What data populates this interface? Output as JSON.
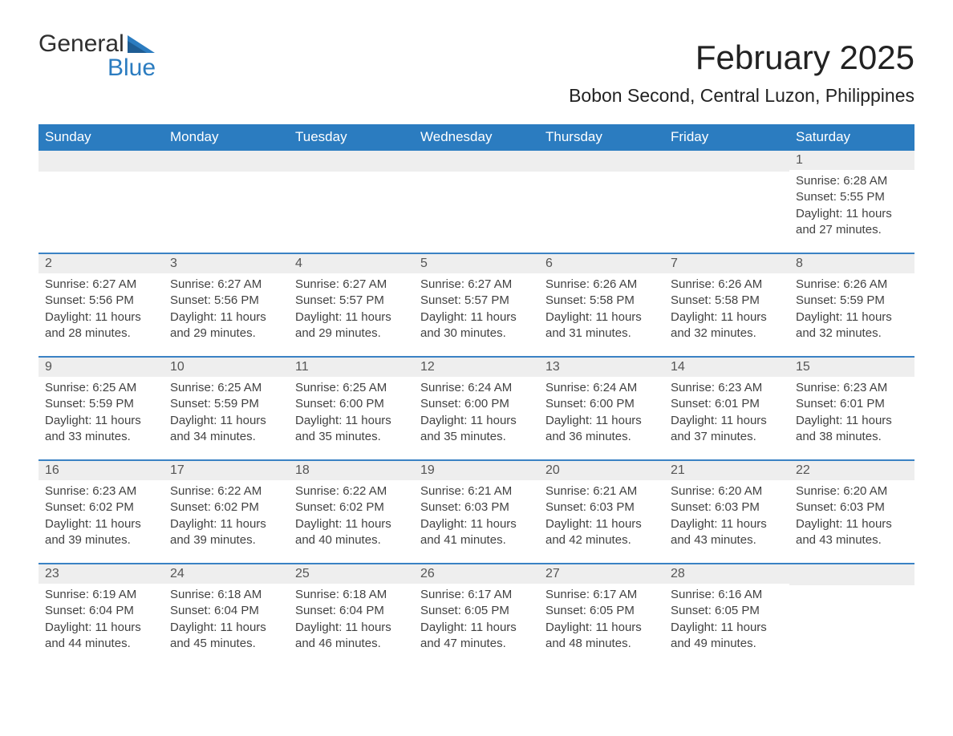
{
  "colors": {
    "header_bg": "#2b7cc0",
    "header_text": "#ffffff",
    "week_border": "#3a82c4",
    "daynum_bg": "#eeeeee",
    "daynum_text": "#555555",
    "body_text": "#424242",
    "title_text": "#222222",
    "logo_text_dark": "#2f2f2f",
    "logo_text_blue": "#2b7cc0",
    "page_bg": "#ffffff"
  },
  "typography": {
    "month_title_size_pt": 32,
    "location_size_pt": 17,
    "weekday_size_pt": 13,
    "daynum_size_pt": 12,
    "body_size_pt": 11,
    "font_family": "Segoe UI"
  },
  "logo": {
    "line1": "General",
    "line2": "Blue"
  },
  "header": {
    "month_title": "February 2025",
    "location": "Bobon Second, Central Luzon, Philippines"
  },
  "weekdays": [
    "Sunday",
    "Monday",
    "Tuesday",
    "Wednesday",
    "Thursday",
    "Friday",
    "Saturday"
  ],
  "calendar": {
    "first_weekday_index": 6,
    "total_days": 28,
    "rows": 5
  },
  "days": {
    "1": {
      "sunrise": "6:28 AM",
      "sunset": "5:55 PM",
      "daylight": "11 hours and 27 minutes."
    },
    "2": {
      "sunrise": "6:27 AM",
      "sunset": "5:56 PM",
      "daylight": "11 hours and 28 minutes."
    },
    "3": {
      "sunrise": "6:27 AM",
      "sunset": "5:56 PM",
      "daylight": "11 hours and 29 minutes."
    },
    "4": {
      "sunrise": "6:27 AM",
      "sunset": "5:57 PM",
      "daylight": "11 hours and 29 minutes."
    },
    "5": {
      "sunrise": "6:27 AM",
      "sunset": "5:57 PM",
      "daylight": "11 hours and 30 minutes."
    },
    "6": {
      "sunrise": "6:26 AM",
      "sunset": "5:58 PM",
      "daylight": "11 hours and 31 minutes."
    },
    "7": {
      "sunrise": "6:26 AM",
      "sunset": "5:58 PM",
      "daylight": "11 hours and 32 minutes."
    },
    "8": {
      "sunrise": "6:26 AM",
      "sunset": "5:59 PM",
      "daylight": "11 hours and 32 minutes."
    },
    "9": {
      "sunrise": "6:25 AM",
      "sunset": "5:59 PM",
      "daylight": "11 hours and 33 minutes."
    },
    "10": {
      "sunrise": "6:25 AM",
      "sunset": "5:59 PM",
      "daylight": "11 hours and 34 minutes."
    },
    "11": {
      "sunrise": "6:25 AM",
      "sunset": "6:00 PM",
      "daylight": "11 hours and 35 minutes."
    },
    "12": {
      "sunrise": "6:24 AM",
      "sunset": "6:00 PM",
      "daylight": "11 hours and 35 minutes."
    },
    "13": {
      "sunrise": "6:24 AM",
      "sunset": "6:00 PM",
      "daylight": "11 hours and 36 minutes."
    },
    "14": {
      "sunrise": "6:23 AM",
      "sunset": "6:01 PM",
      "daylight": "11 hours and 37 minutes."
    },
    "15": {
      "sunrise": "6:23 AM",
      "sunset": "6:01 PM",
      "daylight": "11 hours and 38 minutes."
    },
    "16": {
      "sunrise": "6:23 AM",
      "sunset": "6:02 PM",
      "daylight": "11 hours and 39 minutes."
    },
    "17": {
      "sunrise": "6:22 AM",
      "sunset": "6:02 PM",
      "daylight": "11 hours and 39 minutes."
    },
    "18": {
      "sunrise": "6:22 AM",
      "sunset": "6:02 PM",
      "daylight": "11 hours and 40 minutes."
    },
    "19": {
      "sunrise": "6:21 AM",
      "sunset": "6:03 PM",
      "daylight": "11 hours and 41 minutes."
    },
    "20": {
      "sunrise": "6:21 AM",
      "sunset": "6:03 PM",
      "daylight": "11 hours and 42 minutes."
    },
    "21": {
      "sunrise": "6:20 AM",
      "sunset": "6:03 PM",
      "daylight": "11 hours and 43 minutes."
    },
    "22": {
      "sunrise": "6:20 AM",
      "sunset": "6:03 PM",
      "daylight": "11 hours and 43 minutes."
    },
    "23": {
      "sunrise": "6:19 AM",
      "sunset": "6:04 PM",
      "daylight": "11 hours and 44 minutes."
    },
    "24": {
      "sunrise": "6:18 AM",
      "sunset": "6:04 PM",
      "daylight": "11 hours and 45 minutes."
    },
    "25": {
      "sunrise": "6:18 AM",
      "sunset": "6:04 PM",
      "daylight": "11 hours and 46 minutes."
    },
    "26": {
      "sunrise": "6:17 AM",
      "sunset": "6:05 PM",
      "daylight": "11 hours and 47 minutes."
    },
    "27": {
      "sunrise": "6:17 AM",
      "sunset": "6:05 PM",
      "daylight": "11 hours and 48 minutes."
    },
    "28": {
      "sunrise": "6:16 AM",
      "sunset": "6:05 PM",
      "daylight": "11 hours and 49 minutes."
    }
  },
  "labels": {
    "sunrise_prefix": "Sunrise: ",
    "sunset_prefix": "Sunset: ",
    "daylight_prefix": "Daylight: "
  }
}
